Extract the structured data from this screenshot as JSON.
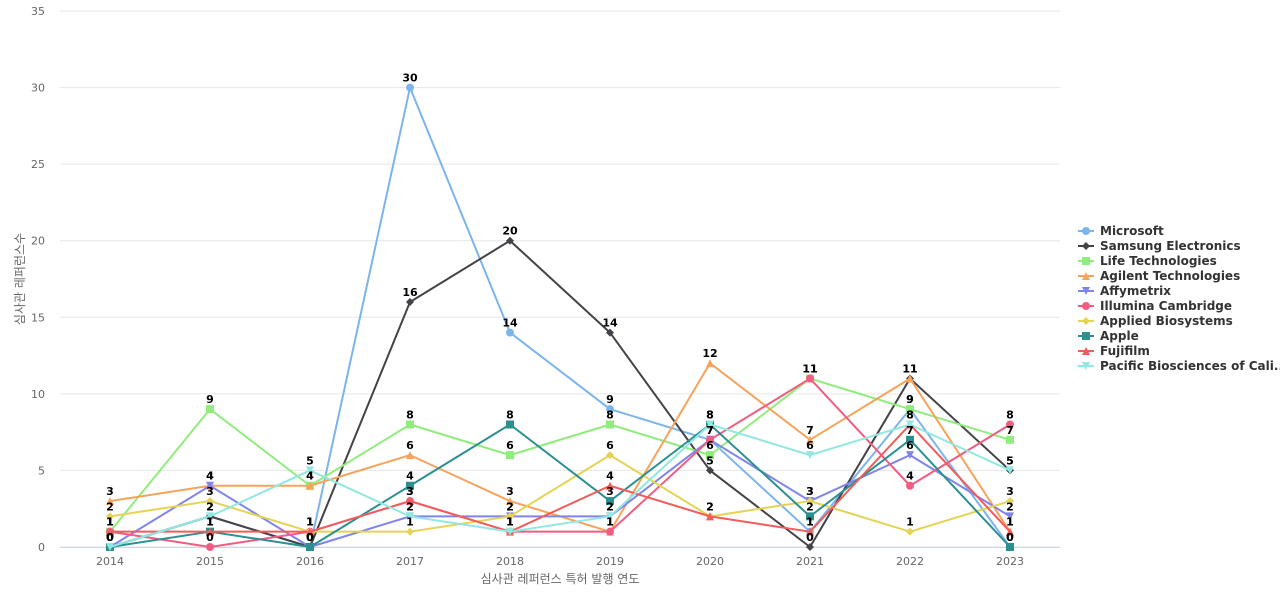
{
  "chart_data": {
    "type": "line",
    "xlabel": "심사관 레퍼런스 특허 발행 연도",
    "ylabel": "심사관 레퍼런스수",
    "categories": [
      "2014",
      "2015",
      "2016",
      "2017",
      "2018",
      "2019",
      "2020",
      "2021",
      "2022",
      "2023"
    ],
    "ylim": [
      0,
      35
    ],
    "yticks": [
      0,
      5,
      10,
      15,
      20,
      25,
      30,
      35
    ],
    "grid": true,
    "legend_position": "right",
    "series": [
      {
        "name": "Microsoft",
        "color": "#7cb5ec",
        "marker": "circle",
        "values": [
          0,
          2,
          0,
          30,
          14,
          9,
          7,
          1,
          9,
          0
        ]
      },
      {
        "name": "Samsung Electronics",
        "color": "#434348",
        "marker": "diamond",
        "values": [
          0,
          2,
          0,
          16,
          20,
          14,
          5,
          0,
          11,
          5
        ]
      },
      {
        "name": "Life Technologies",
        "color": "#90ed7d",
        "marker": "square",
        "values": [
          1,
          9,
          4,
          8,
          6,
          8,
          6,
          11,
          9,
          7
        ]
      },
      {
        "name": "Agilent Technologies",
        "color": "#f7a35c",
        "marker": "triangle",
        "values": [
          3,
          4,
          4,
          6,
          3,
          1,
          12,
          7,
          11,
          1
        ]
      },
      {
        "name": "Affymetrix",
        "color": "#8085e9",
        "marker": "triangle-down",
        "values": [
          0,
          4,
          0,
          2,
          2,
          2,
          7,
          3,
          6,
          2
        ]
      },
      {
        "name": "Illumina Cambridge",
        "color": "#f15c80",
        "marker": "circle",
        "values": [
          1,
          0,
          1,
          3,
          1,
          1,
          7,
          11,
          4,
          8
        ]
      },
      {
        "name": "Applied Biosystems",
        "color": "#e4d354",
        "marker": "diamond",
        "values": [
          2,
          3,
          1,
          1,
          2,
          6,
          2,
          3,
          1,
          3
        ]
      },
      {
        "name": "Apple",
        "color": "#2b908f",
        "marker": "square",
        "values": [
          0,
          1,
          0,
          4,
          8,
          3,
          8,
          2,
          7,
          0
        ]
      },
      {
        "name": "Fujifilm",
        "color": "#f45b5b",
        "marker": "triangle",
        "values": [
          1,
          1,
          1,
          3,
          1,
          4,
          2,
          1,
          8,
          1
        ]
      },
      {
        "name": "Pacific Biosciences of Cali...",
        "color": "#91e8e1",
        "marker": "triangle-down",
        "values": [
          0,
          2,
          5,
          2,
          1,
          2,
          8,
          6,
          8,
          5
        ]
      }
    ]
  }
}
